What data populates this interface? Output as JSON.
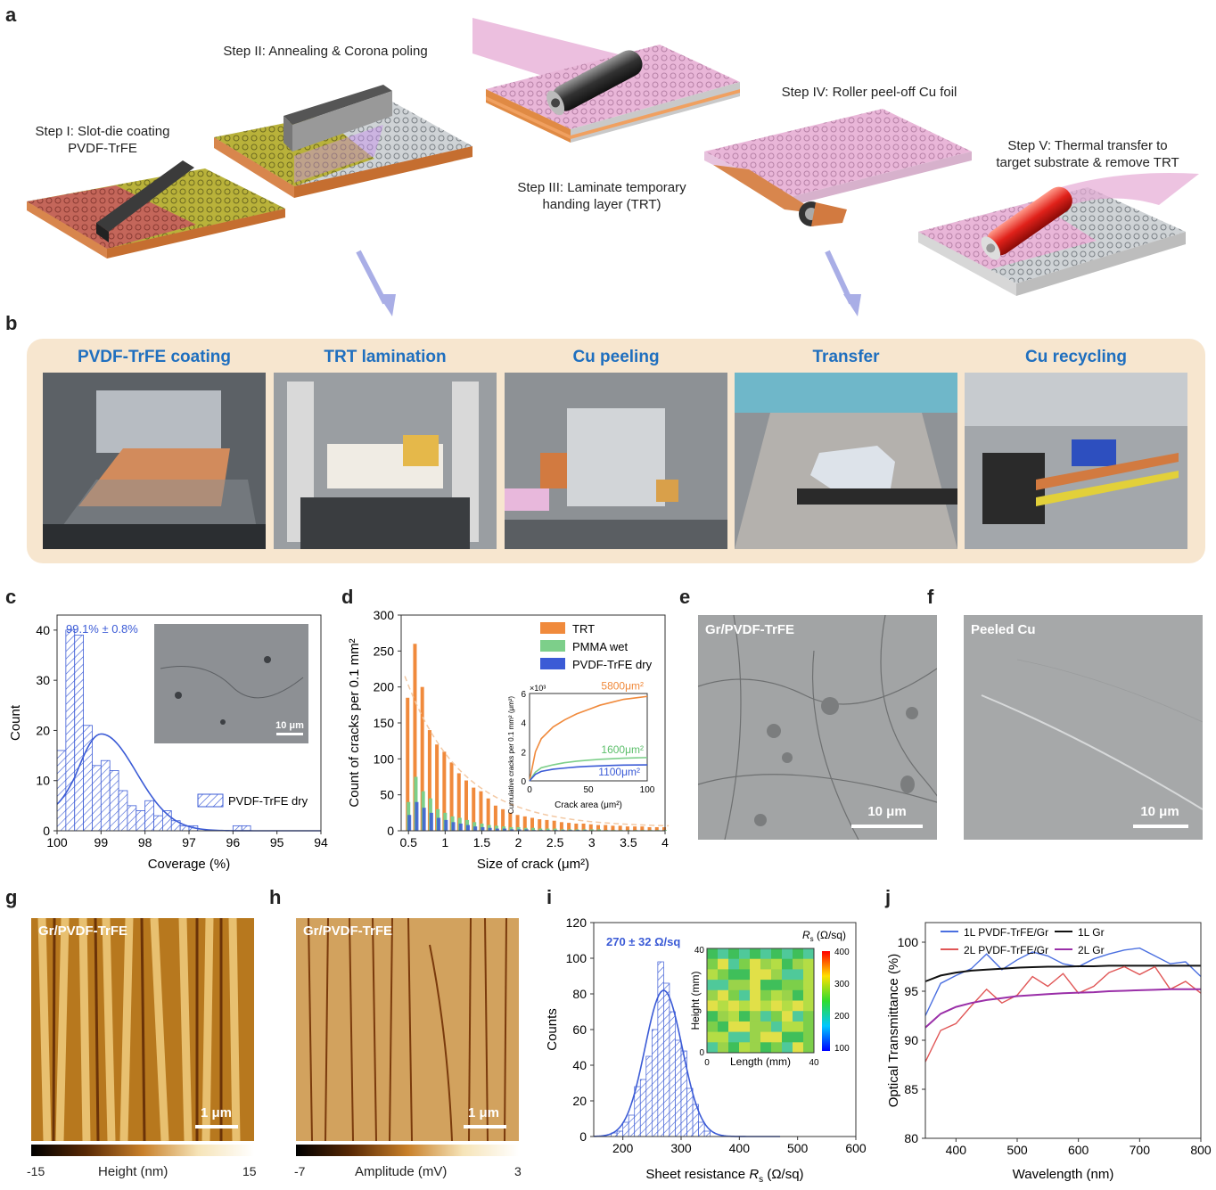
{
  "panels": {
    "a": "a",
    "b": "b",
    "c": "c",
    "d": "d",
    "e": "e",
    "f": "f",
    "g": "g",
    "h": "h",
    "i": "i",
    "j": "j"
  },
  "steps": {
    "s1_line1": "Step I: Slot-die coating",
    "s1_line2": "PVDF-TrFE",
    "s2": "Step II: Annealing & Corona poling",
    "s3_line1": "Step III: Laminate temporary",
    "s3_line2": "handing layer (TRT)",
    "s4": "Step IV: Roller peel-off Cu foil",
    "s5_line1": "Step V: Thermal transfer to",
    "s5_line2": "target substrate & remove TRT"
  },
  "photos": [
    "PVDF-TrFE coating",
    "TRT lamination",
    "Cu peeling",
    "Transfer",
    "Cu recycling"
  ],
  "colors": {
    "blue": "#3b5bd6",
    "orange": "#f08a3c",
    "green": "#7dcf8a",
    "title_blue": "#1f6fbf"
  },
  "micrographs": {
    "e_label": "Gr/PVDF-TrFE",
    "e_scale": "10 μm",
    "f_label": "Peeled Cu",
    "f_scale": "10 μm",
    "g_label": "Gr/PVDF-TrFE",
    "g_scale": "1 μm",
    "g_cbar_min": "-15",
    "g_cbar_title": "Height (nm)",
    "g_cbar_max": "15",
    "h_label": "Gr/PVDF-TrFE",
    "h_scale": "1 μm",
    "h_cbar_min": "-7",
    "h_cbar_title": "Amplitude (mV)",
    "h_cbar_max": "3"
  },
  "chart_data": [
    {
      "panel": "c",
      "type": "bar",
      "annotation": "99.1% ± 0.8%",
      "xlabel": "Coverage (%)",
      "ylabel": "Count",
      "xticks": [
        "100",
        "99",
        "98",
        "97",
        "96",
        "95",
        "94"
      ],
      "yticks": [
        "0",
        "10",
        "20",
        "30",
        "40"
      ],
      "xlim": [
        100,
        94
      ],
      "ylim": [
        0,
        43
      ],
      "bin_width": 0.2,
      "bin_starts": [
        100.0,
        99.8,
        99.6,
        99.4,
        99.2,
        99.0,
        98.8,
        98.6,
        98.4,
        98.2,
        98.0,
        97.8,
        97.6,
        97.4,
        97.2,
        97.0,
        96.8,
        96.6,
        96.4,
        96.2,
        96.0,
        95.8
      ],
      "values": [
        16,
        40,
        39,
        21,
        13,
        14,
        12,
        8,
        5,
        4,
        6,
        3,
        4,
        2,
        1,
        1,
        0,
        0,
        0,
        0,
        1,
        1
      ],
      "fit_peak_x": 99.0,
      "fit_peak_y": 19.3,
      "legend": "PVDF-TrFE dry",
      "inset_scale": "10 μm"
    },
    {
      "panel": "d",
      "type": "bar",
      "xlabel": "Size of crack (μm²)",
      "ylabel": "Count of cracks per 0.1 mm²",
      "xticks": [
        "0.5",
        "1",
        "1.5",
        "2",
        "2.5",
        "3",
        "3.5",
        "4"
      ],
      "yticks": [
        "0",
        "50",
        "100",
        "150",
        "200",
        "250",
        "300"
      ],
      "xlim": [
        0.4,
        4.0
      ],
      "ylim": [
        0,
        300
      ],
      "x": [
        0.5,
        0.6,
        0.7,
        0.8,
        0.9,
        1.0,
        1.1,
        1.2,
        1.3,
        1.4,
        1.5,
        1.6,
        1.7,
        1.8,
        1.9,
        2.0,
        2.1,
        2.2,
        2.3,
        2.4,
        2.5,
        2.6,
        2.7,
        2.8,
        2.9,
        3.0,
        3.1,
        3.2,
        3.3,
        3.4,
        3.5,
        3.6,
        3.7,
        3.8,
        3.9,
        4.0
      ],
      "series": [
        {
          "name": "TRT",
          "values": [
            185,
            260,
            200,
            140,
            120,
            110,
            95,
            80,
            70,
            60,
            55,
            45,
            35,
            30,
            25,
            22,
            20,
            18,
            16,
            15,
            14,
            12,
            11,
            10,
            10,
            9,
            8,
            8,
            7,
            7,
            6,
            6,
            6,
            5,
            5,
            5
          ]
        },
        {
          "name": "PMMA wet",
          "values": [
            40,
            75,
            55,
            45,
            30,
            25,
            20,
            18,
            15,
            12,
            10,
            8,
            7,
            6,
            5,
            5,
            4,
            4,
            3,
            3,
            3,
            2,
            2,
            2,
            2,
            2,
            2,
            1,
            1,
            1,
            1,
            1,
            1,
            1,
            1,
            1
          ]
        },
        {
          "name": "PVDF-TrFE dry",
          "values": [
            22,
            40,
            32,
            25,
            18,
            15,
            12,
            10,
            8,
            6,
            5,
            4,
            3,
            3,
            2,
            2,
            2,
            1,
            1,
            1,
            1,
            1,
            1,
            1,
            1,
            0,
            0,
            0,
            0,
            0,
            0,
            0,
            0,
            0,
            0,
            0
          ]
        }
      ],
      "inset": {
        "xlabel": "Crack area (μm²)",
        "ylabel": "Cumulative cracks per 0.1 mm² (μm²)",
        "multiplier": "×10³",
        "xticks": [
          "0",
          "50",
          "100"
        ],
        "yticks": [
          "0",
          "2",
          "4",
          "6"
        ],
        "xlim": [
          0,
          100
        ],
        "ylim": [
          0,
          6
        ],
        "x": [
          0,
          5,
          10,
          20,
          30,
          40,
          50,
          60,
          70,
          80,
          90,
          100
        ],
        "series": [
          {
            "name": "TRT",
            "final_label": "5800μm²",
            "values": [
              0,
              2.0,
              2.9,
              3.7,
              4.2,
              4.6,
              4.9,
              5.2,
              5.4,
              5.6,
              5.7,
              5.8
            ]
          },
          {
            "name": "PMMA wet",
            "final_label": "1600μm²",
            "values": [
              0,
              0.6,
              0.9,
              1.1,
              1.25,
              1.35,
              1.42,
              1.48,
              1.52,
              1.56,
              1.58,
              1.6
            ]
          },
          {
            "name": "PVDF-TrFE dry",
            "final_label": "1100μm²",
            "values": [
              0,
              0.45,
              0.65,
              0.8,
              0.88,
              0.95,
              1.0,
              1.03,
              1.06,
              1.08,
              1.09,
              1.1
            ]
          }
        ]
      }
    },
    {
      "panel": "i",
      "type": "bar",
      "annotation": "270 ± 32 Ω/sq",
      "xlabel_main": "Sheet resistance ",
      "xlabel_sym": "R",
      "xlabel_sub": "s",
      "xlabel_unit": " (Ω/sq)",
      "ylabel": "Counts",
      "xticks": [
        "200",
        "300",
        "400",
        "500",
        "600"
      ],
      "yticks": [
        "0",
        "20",
        "40",
        "60",
        "80",
        "100",
        "120"
      ],
      "xlim": [
        150,
        600
      ],
      "ylim": [
        0,
        120
      ],
      "bin_width": 10,
      "bin_starts": [
        180,
        190,
        200,
        210,
        220,
        230,
        240,
        250,
        260,
        270,
        280,
        290,
        300,
        310,
        320,
        330,
        340
      ],
      "values": [
        2,
        3,
        8,
        12,
        28,
        32,
        45,
        60,
        98,
        86,
        70,
        54,
        48,
        27,
        18,
        8,
        3
      ],
      "fit_mean": 270,
      "fit_sd": 32,
      "fit_peak": 82,
      "inset": {
        "title_sym": "R",
        "title_sub": "s",
        "title_unit": " (Ω/sq)",
        "xlabel": "Length (mm)",
        "ylabel": "Height (mm)",
        "xticks": [
          "0",
          "40"
        ],
        "yticks": [
          "0",
          "40"
        ],
        "cbar_ticks": [
          "400",
          "300",
          "200",
          "100"
        ]
      }
    },
    {
      "panel": "j",
      "type": "line",
      "xlabel": "Wavelength (nm)",
      "ylabel": "Optical Transmittance (%)",
      "xticks": [
        "400",
        "500",
        "600",
        "700",
        "800"
      ],
      "yticks": [
        "80",
        "85",
        "90",
        "95",
        "100"
      ],
      "xlim": [
        350,
        800
      ],
      "ylim": [
        80,
        102
      ],
      "x": [
        350,
        375,
        400,
        425,
        450,
        475,
        500,
        525,
        550,
        575,
        600,
        625,
        650,
        675,
        700,
        725,
        750,
        775,
        800
      ],
      "series": [
        {
          "name": "1L PVDF-TrFE/Gr",
          "color": "#4a6fe0",
          "values": [
            92.5,
            95.8,
            96.6,
            97.3,
            98.8,
            97.2,
            98.2,
            99.0,
            98.6,
            97.8,
            97.5,
            98.3,
            98.8,
            99.2,
            99.4,
            98.6,
            97.8,
            98.0,
            96.5
          ]
        },
        {
          "name": "1L Gr",
          "color": "#111111",
          "values": [
            96.0,
            96.6,
            96.9,
            97.1,
            97.2,
            97.3,
            97.4,
            97.45,
            97.5,
            97.5,
            97.55,
            97.55,
            97.6,
            97.6,
            97.6,
            97.6,
            97.6,
            97.6,
            97.6
          ]
        },
        {
          "name": "2L PVDF-TrFE/Gr",
          "color": "#e05656",
          "values": [
            87.8,
            91.0,
            91.7,
            93.5,
            95.2,
            93.8,
            94.6,
            96.5,
            95.5,
            96.8,
            94.8,
            95.5,
            96.9,
            97.5,
            96.7,
            97.5,
            95.2,
            96.0,
            94.8
          ]
        },
        {
          "name": "2L Gr",
          "color": "#9a2fa8",
          "values": [
            91.3,
            92.7,
            93.4,
            93.8,
            94.1,
            94.3,
            94.5,
            94.6,
            94.7,
            94.8,
            94.85,
            94.9,
            95.0,
            95.05,
            95.1,
            95.15,
            95.2,
            95.2,
            95.2
          ]
        }
      ]
    }
  ]
}
